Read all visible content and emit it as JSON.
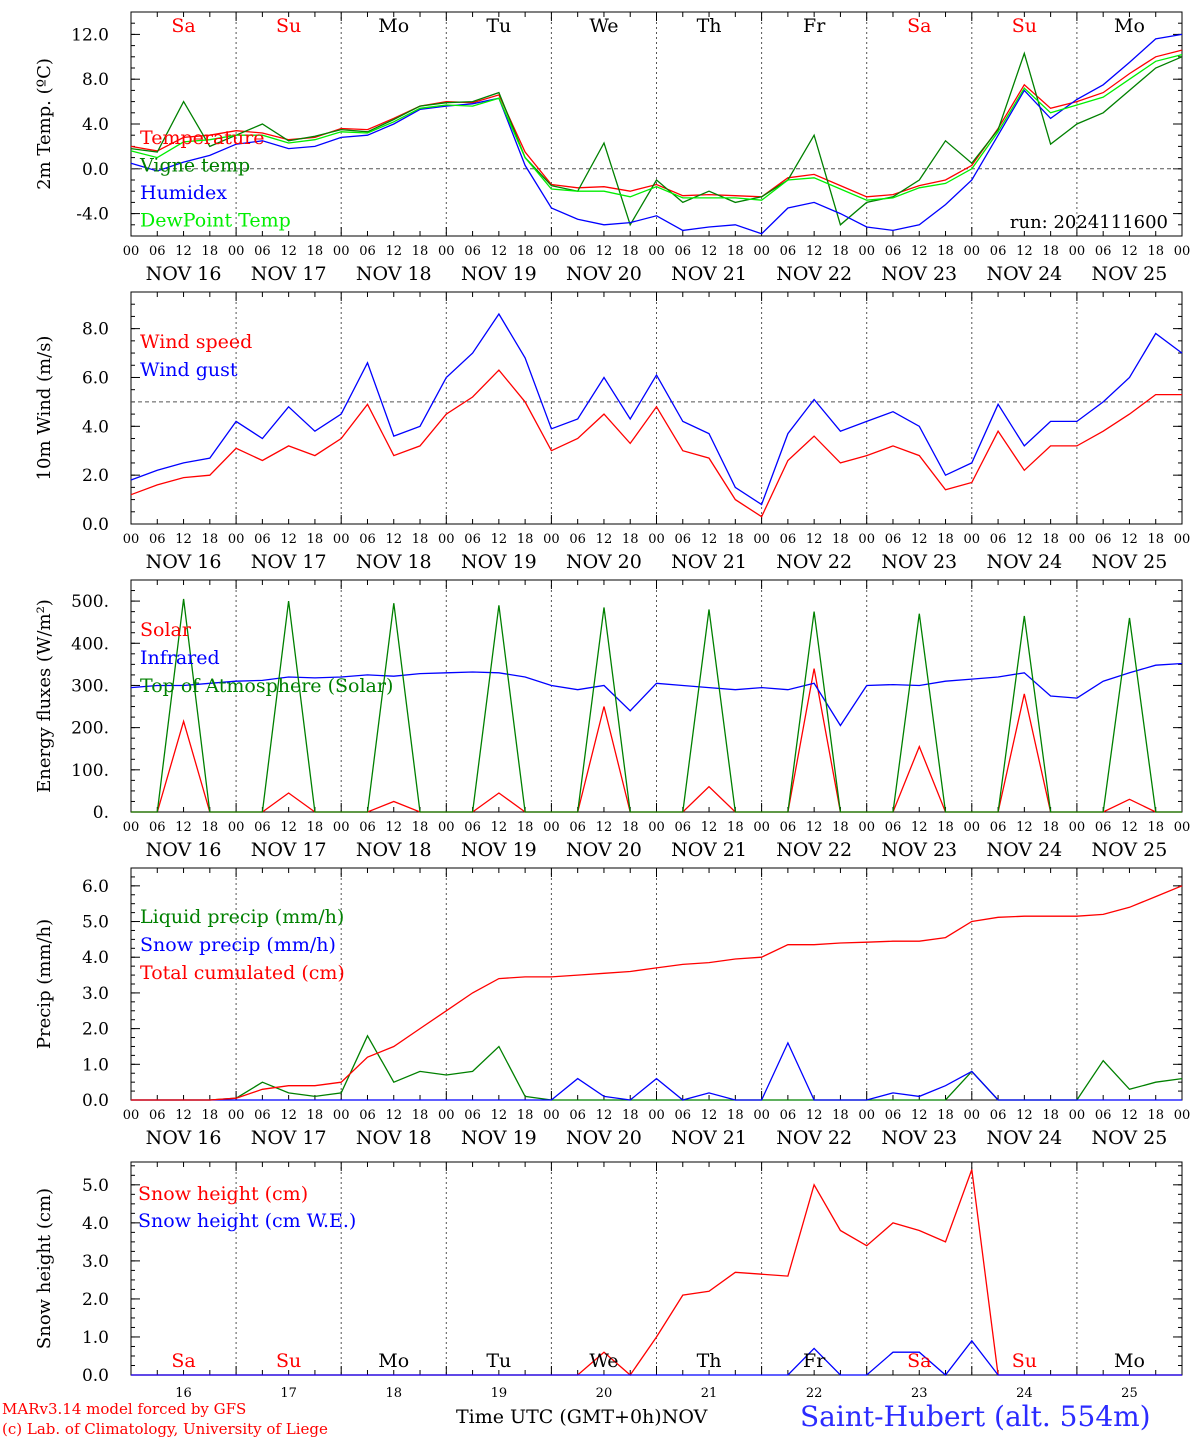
{
  "chart_data": [
    {
      "type": "line",
      "ylabel": "2m Temp. (ºC)",
      "ylim": [
        -6,
        14
      ],
      "yticks": [
        "-4.0",
        "0.0",
        "4.0",
        "8.0",
        "12.0"
      ],
      "reference_line": 0,
      "x": [
        0,
        6,
        12,
        18,
        24,
        30,
        36,
        42,
        48,
        54,
        60,
        66,
        72,
        78,
        84,
        90,
        96,
        102,
        108,
        114,
        120,
        126,
        132,
        138,
        144,
        150,
        156,
        162,
        168,
        174,
        180,
        186,
        192,
        198,
        204,
        210,
        216,
        222,
        228,
        234,
        240
      ],
      "x_unit": "hours after 16 Nov 00 UTC",
      "annotation": "run: 2024111600",
      "series": [
        {
          "name": "Temperature",
          "color": "#ff0000",
          "values": [
            2.0,
            1.6,
            2.8,
            3.0,
            3.4,
            3.2,
            2.6,
            2.8,
            3.6,
            3.5,
            4.5,
            5.6,
            6.0,
            5.9,
            6.6,
            1.5,
            -1.4,
            -1.7,
            -1.6,
            -2.0,
            -1.4,
            -2.4,
            -2.3,
            -2.4,
            -2.5,
            -0.8,
            -0.5,
            -1.5,
            -2.5,
            -2.3,
            -1.5,
            -1.0,
            0.3,
            3.6,
            7.5,
            5.4,
            6.0,
            6.8,
            8.5,
            10.0,
            10.6
          ]
        },
        {
          "name": "Vigne temp",
          "color": "#008000",
          "values": [
            1.8,
            1.5,
            6.0,
            2.0,
            3.0,
            4.0,
            2.5,
            2.9,
            3.5,
            3.3,
            4.4,
            5.6,
            5.9,
            6.0,
            6.8,
            1.0,
            -1.5,
            -2.0,
            2.3,
            -5.0,
            -1.0,
            -3.0,
            -2.0,
            -3.0,
            -2.5,
            -1.0,
            3.0,
            -5.0,
            -3.0,
            -2.5,
            -1.0,
            2.5,
            0.5,
            3.5,
            10.3,
            2.2,
            4.0,
            5.0,
            7.0,
            9.0,
            10.0
          ]
        },
        {
          "name": "Humidex",
          "color": "#0000ff",
          "values": [
            0.5,
            -0.2,
            0.6,
            1.2,
            2.2,
            2.5,
            1.8,
            2.0,
            2.8,
            3.0,
            4.0,
            5.3,
            5.6,
            5.8,
            6.3,
            0.3,
            -3.5,
            -4.5,
            -5.0,
            -4.8,
            -4.2,
            -5.5,
            -5.2,
            -5.0,
            -5.8,
            -3.5,
            -3.0,
            -4.0,
            -5.2,
            -5.5,
            -5.0,
            -3.2,
            -1.0,
            3.0,
            7.0,
            4.5,
            6.2,
            7.5,
            9.5,
            11.6,
            12.0
          ]
        },
        {
          "name": "DewPoint Temp",
          "color": "#00ee00",
          "values": [
            1.6,
            1.0,
            2.4,
            2.6,
            3.0,
            3.0,
            2.3,
            2.6,
            3.3,
            3.2,
            4.2,
            5.4,
            5.7,
            5.6,
            6.3,
            1.0,
            -1.8,
            -2.0,
            -2.0,
            -2.5,
            -1.6,
            -2.6,
            -2.6,
            -2.6,
            -2.8,
            -1.0,
            -0.8,
            -1.8,
            -2.8,
            -2.6,
            -1.7,
            -1.3,
            0.0,
            3.3,
            7.2,
            5.0,
            5.7,
            6.4,
            8.0,
            9.6,
            10.2
          ]
        }
      ]
    },
    {
      "type": "line",
      "ylabel": "10m Wind (m/s)",
      "ylim": [
        0,
        9.5
      ],
      "yticks": [
        "0.0",
        "2.0",
        "4.0",
        "6.0",
        "8.0"
      ],
      "reference_line": 5,
      "x": [
        0,
        6,
        12,
        18,
        24,
        30,
        36,
        42,
        48,
        54,
        60,
        66,
        72,
        78,
        84,
        90,
        96,
        102,
        108,
        114,
        120,
        126,
        132,
        138,
        144,
        150,
        156,
        162,
        168,
        174,
        180,
        186,
        192,
        198,
        204,
        210,
        216,
        222,
        228,
        234,
        240
      ],
      "x_unit": "hours after 16 Nov 00 UTC",
      "series": [
        {
          "name": "Wind speed",
          "color": "#ff0000",
          "values": [
            1.2,
            1.6,
            1.9,
            2.0,
            3.1,
            2.6,
            3.2,
            2.8,
            3.5,
            4.9,
            2.8,
            3.2,
            4.5,
            5.2,
            6.3,
            5.0,
            3.0,
            3.5,
            4.5,
            3.3,
            4.8,
            3.0,
            2.7,
            1.0,
            0.3,
            2.6,
            3.6,
            2.5,
            2.8,
            3.2,
            2.8,
            1.4,
            1.7,
            3.8,
            2.2,
            3.2,
            3.2,
            3.8,
            4.5,
            5.3,
            5.3
          ]
        },
        {
          "name": "Wind gust",
          "color": "#0000ff",
          "values": [
            1.8,
            2.2,
            2.5,
            2.7,
            4.2,
            3.5,
            4.8,
            3.8,
            4.5,
            6.6,
            3.6,
            4.0,
            6.0,
            7.0,
            8.6,
            6.8,
            3.9,
            4.3,
            6.0,
            4.3,
            6.1,
            4.2,
            3.7,
            1.5,
            0.8,
            3.7,
            5.1,
            3.8,
            4.2,
            4.6,
            4.0,
            2.0,
            2.5,
            4.9,
            3.2,
            4.2,
            4.2,
            5.0,
            6.0,
            7.8,
            7.0
          ]
        }
      ]
    },
    {
      "type": "line",
      "ylabel": "Energy fluxes (W/m²)",
      "ylim": [
        0,
        550
      ],
      "yticks": [
        "0.",
        "100.",
        "200.",
        "300.",
        "400.",
        "500."
      ],
      "x": [
        0,
        6,
        12,
        18,
        24,
        30,
        36,
        42,
        48,
        54,
        60,
        66,
        72,
        78,
        84,
        90,
        96,
        102,
        108,
        114,
        120,
        126,
        132,
        138,
        144,
        150,
        156,
        162,
        168,
        174,
        180,
        186,
        192,
        198,
        204,
        210,
        216,
        222,
        228,
        234,
        240
      ],
      "x_unit": "hours after 16 Nov 00 UTC",
      "series": [
        {
          "name": "Solar",
          "color": "#ff0000",
          "values": [
            0,
            0,
            215,
            0,
            0,
            0,
            45,
            0,
            0,
            0,
            25,
            0,
            0,
            0,
            45,
            0,
            0,
            0,
            250,
            0,
            0,
            0,
            60,
            0,
            0,
            0,
            340,
            0,
            0,
            0,
            155,
            0,
            0,
            0,
            280,
            0,
            0,
            0,
            30,
            0,
            0
          ]
        },
        {
          "name": "Infrared",
          "color": "#0000ff",
          "values": [
            295,
            300,
            300,
            305,
            310,
            312,
            320,
            318,
            320,
            325,
            322,
            328,
            330,
            332,
            330,
            320,
            300,
            290,
            300,
            240,
            305,
            300,
            295,
            290,
            295,
            290,
            305,
            205,
            300,
            302,
            300,
            310,
            315,
            320,
            330,
            275,
            270,
            310,
            330,
            348,
            352
          ]
        },
        {
          "name": "Top of Atmosphere (Solar)",
          "color": "#008000",
          "values": [
            0,
            0,
            505,
            0,
            0,
            0,
            500,
            0,
            0,
            0,
            495,
            0,
            0,
            0,
            490,
            0,
            0,
            0,
            485,
            0,
            0,
            0,
            480,
            0,
            0,
            0,
            475,
            0,
            0,
            0,
            470,
            0,
            0,
            0,
            465,
            0,
            0,
            0,
            460,
            0,
            0
          ]
        }
      ]
    },
    {
      "type": "line",
      "ylabel": "Precip (mm/h)",
      "ylim": [
        0,
        6.5
      ],
      "yticks": [
        "0.0",
        "1.0",
        "2.0",
        "3.0",
        "4.0",
        "5.0",
        "6.0"
      ],
      "x": [
        0,
        6,
        12,
        18,
        24,
        30,
        36,
        42,
        48,
        54,
        60,
        66,
        72,
        78,
        84,
        90,
        96,
        102,
        108,
        114,
        120,
        126,
        132,
        138,
        144,
        150,
        156,
        162,
        168,
        174,
        180,
        186,
        192,
        198,
        204,
        210,
        216,
        222,
        228,
        234,
        240
      ],
      "x_unit": "hours after 16 Nov 00 UTC",
      "series": [
        {
          "name": "Liquid precip (mm/h)",
          "color": "#008000",
          "values": [
            0,
            0,
            0,
            0,
            0.05,
            0.5,
            0.2,
            0.1,
            0.2,
            1.8,
            0.5,
            0.8,
            0.7,
            0.8,
            1.5,
            0.1,
            0,
            0,
            0,
            0,
            0,
            0,
            0,
            0,
            0,
            0,
            0,
            0,
            0,
            0,
            0,
            0,
            0.8,
            0,
            0,
            0,
            0,
            1.1,
            0.3,
            0.5,
            0.6
          ]
        },
        {
          "name": "Snow precip (mm/h)",
          "color": "#0000ff",
          "values": [
            0,
            0,
            0,
            0,
            0,
            0,
            0,
            0,
            0,
            0,
            0,
            0,
            0,
            0,
            0,
            0,
            0,
            0.6,
            0.1,
            0,
            0.6,
            0,
            0.2,
            0,
            0,
            1.6,
            0,
            0,
            0,
            0.2,
            0.1,
            0.4,
            0.8,
            0,
            0,
            0,
            0,
            0,
            0,
            0,
            0
          ]
        },
        {
          "name": "Total cumulated (cm)",
          "color": "#ff0000",
          "values": [
            0,
            0,
            0,
            0,
            0.05,
            0.3,
            0.4,
            0.4,
            0.5,
            1.2,
            1.5,
            2.0,
            2.5,
            3.0,
            3.4,
            3.45,
            3.45,
            3.5,
            3.55,
            3.6,
            3.7,
            3.8,
            3.85,
            3.95,
            4.0,
            4.35,
            4.35,
            4.4,
            4.42,
            4.45,
            4.45,
            4.55,
            5.0,
            5.12,
            5.15,
            5.15,
            5.15,
            5.2,
            5.4,
            5.7,
            6.0
          ]
        }
      ]
    },
    {
      "type": "line",
      "ylabel": "Snow height (cm)",
      "ylim": [
        0,
        5.6
      ],
      "yticks": [
        "0.0",
        "1.0",
        "2.0",
        "3.0",
        "4.0",
        "5.0"
      ],
      "x": [
        0,
        6,
        12,
        18,
        24,
        30,
        36,
        42,
        48,
        54,
        60,
        66,
        72,
        78,
        84,
        90,
        96,
        102,
        108,
        114,
        120,
        126,
        132,
        138,
        144,
        150,
        156,
        162,
        168,
        174,
        180,
        186,
        192,
        198,
        204,
        210,
        216,
        222,
        228,
        234,
        240
      ],
      "x_unit": "hours after 16 Nov 00 UTC",
      "series": [
        {
          "name": "Snow height (cm)",
          "color": "#ff0000",
          "values": [
            0,
            0,
            0,
            0,
            0,
            0,
            0,
            0,
            0,
            0,
            0,
            0,
            0,
            0,
            0,
            0,
            0,
            0,
            0.6,
            0,
            1.0,
            2.1,
            2.2,
            2.7,
            2.65,
            2.6,
            5.0,
            3.8,
            3.4,
            4.0,
            3.8,
            3.5,
            5.4,
            0,
            0,
            0,
            0,
            0,
            0,
            0,
            0
          ]
        },
        {
          "name": "Snow height (cm W.E.)",
          "color": "#0000ff",
          "values": [
            0,
            0,
            0,
            0,
            0,
            0,
            0,
            0,
            0,
            0,
            0,
            0,
            0,
            0,
            0,
            0,
            0,
            0,
            0,
            0,
            0,
            0,
            0,
            0,
            0,
            0,
            0.7,
            0,
            0,
            0.6,
            0.6,
            0,
            0.9,
            0,
            0,
            0,
            0,
            0,
            0,
            0,
            0
          ]
        }
      ]
    }
  ],
  "day_names": [
    "Sa",
    "Su",
    "Mo",
    "Tu",
    "We",
    "Th",
    "Fr",
    "Sa",
    "Su",
    "Mo"
  ],
  "day_name_colors": [
    "#ff0000",
    "#ff0000",
    "#000000",
    "#000000",
    "#000000",
    "#000000",
    "#000000",
    "#ff0000",
    "#ff0000",
    "#000000"
  ],
  "date_labels": [
    "NOV 16",
    "NOV 17",
    "NOV 18",
    "NOV 19",
    "NOV 20",
    "NOV 21",
    "NOV 22",
    "NOV 23",
    "NOV 24",
    "NOV 25"
  ],
  "hour_ticks": [
    "00",
    "06",
    "12",
    "18"
  ],
  "last_hour_tick": "00",
  "day_numbers": [
    "16",
    "17",
    "18",
    "19",
    "20",
    "21",
    "22",
    "23",
    "24",
    "25"
  ],
  "footer": {
    "credit_line1": "MARv3.14 model forced by GFS",
    "credit_line2": "(c) Lab. of Climatology, University of Liege",
    "xlabel": "Time UTC (GMT+0h)",
    "xlabel_suffix": "NOV",
    "station": "Saint-Hubert (alt. 554m)",
    "station_color": "#2b2bff"
  }
}
